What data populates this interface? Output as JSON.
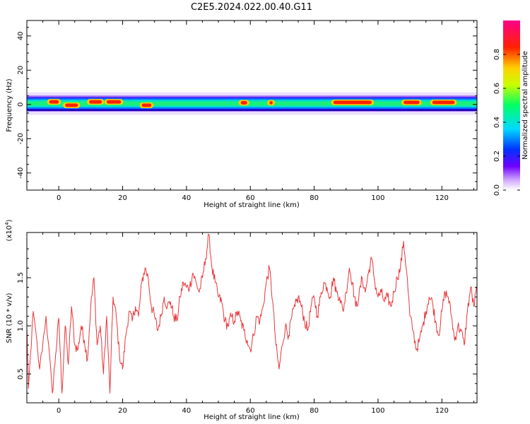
{
  "title": "C2E5.2024.022.00.40.G11",
  "colors": {
    "axis": "#000000",
    "snr_line": "#e8363a",
    "colormap": [
      "#ffffff",
      "#6e00ff",
      "#0033ff",
      "#00d9ff",
      "#00ff66",
      "#c8ff00",
      "#ffd000",
      "#ff2200",
      "#ff0088"
    ]
  },
  "chart_data": [
    {
      "type": "heatmap",
      "xlabel": "Height of straight line (km)",
      "ylabel": "Frequency (Hz)",
      "xlim": [
        -10,
        131
      ],
      "ylim": [
        -50,
        49
      ],
      "xticks": [
        "0",
        "20",
        "40",
        "60",
        "80",
        "100",
        "120"
      ],
      "xtick_values": [
        0,
        20,
        40,
        60,
        80,
        100,
        120
      ],
      "yticks": [
        "-40",
        "-20",
        "0",
        "20",
        "40"
      ],
      "ytick_values": [
        -40,
        -20,
        0,
        20,
        40
      ],
      "band": {
        "center_hz": 0.5,
        "half_width_hz": 3,
        "hot_segments": [
          {
            "x0": -3,
            "x1": 0,
            "f": 1.5
          },
          {
            "x0": 2,
            "x1": 6,
            "f": -0.5
          },
          {
            "x0": 9.5,
            "x1": 13.5,
            "f": 1.5
          },
          {
            "x0": 15,
            "x1": 19.5,
            "f": 1.5
          },
          {
            "x0": 26,
            "x1": 29,
            "f": -0.5
          },
          {
            "x0": 57,
            "x1": 59,
            "f": 1.0
          },
          {
            "x0": 66,
            "x1": 67,
            "f": 1.0
          },
          {
            "x0": 86,
            "x1": 98,
            "f": 1.2
          },
          {
            "x0": 108,
            "x1": 113,
            "f": 1.2
          },
          {
            "x0": 117,
            "x1": 124,
            "f": 1.2
          }
        ]
      },
      "colorbar": {
        "label": "Normalized spectral amplitude",
        "range": [
          0,
          1
        ],
        "ticks": [
          "0.0",
          "0.2",
          "0.4",
          "0.6",
          "0.8"
        ],
        "tick_values": [
          0,
          0.2,
          0.4,
          0.6,
          0.8
        ]
      }
    },
    {
      "type": "line",
      "xlabel": "Height of straight line (km)",
      "ylabel": "SNR (10 * v/v)",
      "scale_label": "(x10",
      "scale_exponent": "4",
      "scale_suffix": ")",
      "xlim": [
        -10,
        131
      ],
      "ylim": [
        0.2,
        1.97
      ],
      "xticks": [
        "0",
        "20",
        "40",
        "60",
        "80",
        "100",
        "120"
      ],
      "xtick_values": [
        0,
        20,
        40,
        60,
        80,
        100,
        120
      ],
      "yticks": [
        "0.5",
        "1.0",
        "1.5"
      ],
      "ytick_values": [
        0.5,
        1.0,
        1.5
      ],
      "keypoints": [
        [
          -10,
          0.98
        ],
        [
          -9.5,
          0.35
        ],
        [
          -8,
          1.15
        ],
        [
          -6,
          0.55
        ],
        [
          -4,
          1.1
        ],
        [
          -2,
          0.3
        ],
        [
          -1,
          0.7
        ],
        [
          0,
          1.08
        ],
        [
          1,
          0.3
        ],
        [
          2,
          1.0
        ],
        [
          3,
          0.6
        ],
        [
          4,
          1.2
        ],
        [
          5,
          0.8
        ],
        [
          6,
          0.75
        ],
        [
          7,
          1.0
        ],
        [
          8,
          0.85
        ],
        [
          9,
          0.65
        ],
        [
          10,
          1.2
        ],
        [
          11,
          1.5
        ],
        [
          12,
          0.8
        ],
        [
          13,
          1.0
        ],
        [
          14,
          0.5
        ],
        [
          15,
          1.1
        ],
        [
          16,
          0.3
        ],
        [
          17,
          1.3
        ],
        [
          18,
          1.1
        ],
        [
          19,
          0.7
        ],
        [
          20,
          0.55
        ],
        [
          21,
          0.9
        ],
        [
          22,
          1.15
        ],
        [
          23,
          1.05
        ],
        [
          24,
          1.2
        ],
        [
          25,
          1.1
        ],
        [
          26,
          1.45
        ],
        [
          27,
          1.6
        ],
        [
          28,
          1.5
        ],
        [
          29,
          1.2
        ],
        [
          30,
          1.1
        ],
        [
          31,
          0.95
        ],
        [
          32,
          1.1
        ],
        [
          33,
          1.3
        ],
        [
          34,
          1.2
        ],
        [
          35,
          1.25
        ],
        [
          36,
          1.1
        ],
        [
          37,
          1.05
        ],
        [
          38,
          1.3
        ],
        [
          39,
          1.45
        ],
        [
          40,
          1.4
        ],
        [
          41,
          1.4
        ],
        [
          42,
          1.55
        ],
        [
          43,
          1.45
        ],
        [
          44,
          1.35
        ],
        [
          45,
          1.5
        ],
        [
          46,
          1.7
        ],
        [
          47,
          1.95
        ],
        [
          48,
          1.6
        ],
        [
          49,
          1.45
        ],
        [
          50,
          1.3
        ],
        [
          51,
          1.25
        ],
        [
          52,
          1.05
        ],
        [
          53,
          1.0
        ],
        [
          54,
          1.1
        ],
        [
          55,
          1.05
        ],
        [
          56,
          1.15
        ],
        [
          57,
          1.05
        ],
        [
          58,
          0.95
        ],
        [
          59,
          0.85
        ],
        [
          60,
          0.75
        ],
        [
          61,
          0.9
        ],
        [
          62,
          1.1
        ],
        [
          63,
          1.05
        ],
        [
          64,
          1.2
        ],
        [
          65,
          1.45
        ],
        [
          66,
          1.6
        ],
        [
          67,
          1.25
        ],
        [
          68,
          0.8
        ],
        [
          69,
          0.55
        ],
        [
          70,
          0.8
        ],
        [
          71,
          1.0
        ],
        [
          72,
          0.9
        ],
        [
          73,
          1.1
        ],
        [
          74,
          1.2
        ],
        [
          75,
          1.3
        ],
        [
          76,
          1.2
        ],
        [
          77,
          1.05
        ],
        [
          78,
          0.95
        ],
        [
          79,
          1.2
        ],
        [
          80,
          1.3
        ],
        [
          81,
          1.1
        ],
        [
          82,
          1.3
        ],
        [
          83,
          1.45
        ],
        [
          84,
          1.4
        ],
        [
          85,
          1.3
        ],
        [
          86,
          1.5
        ],
        [
          87,
          1.35
        ],
        [
          88,
          1.3
        ],
        [
          89,
          1.15
        ],
        [
          90,
          1.35
        ],
        [
          91,
          1.6
        ],
        [
          92,
          1.45
        ],
        [
          93,
          1.2
        ],
        [
          94,
          1.3
        ],
        [
          95,
          1.5
        ],
        [
          96,
          1.35
        ],
        [
          97,
          1.55
        ],
        [
          98,
          1.7
        ],
        [
          99,
          1.45
        ],
        [
          100,
          1.3
        ],
        [
          101,
          1.35
        ],
        [
          102,
          1.25
        ],
        [
          103,
          1.3
        ],
        [
          104,
          1.2
        ],
        [
          105,
          1.35
        ],
        [
          106,
          1.5
        ],
        [
          107,
          1.6
        ],
        [
          108,
          1.88
        ],
        [
          109,
          1.55
        ],
        [
          110,
          1.1
        ],
        [
          111,
          0.95
        ],
        [
          112,
          0.75
        ],
        [
          113,
          0.85
        ],
        [
          114,
          1.0
        ],
        [
          115,
          1.15
        ],
        [
          116,
          1.3
        ],
        [
          117,
          1.25
        ],
        [
          118,
          1.05
        ],
        [
          119,
          0.9
        ],
        [
          120,
          1.15
        ],
        [
          121,
          1.35
        ],
        [
          122,
          1.3
        ],
        [
          123,
          1.1
        ],
        [
          124,
          0.85
        ],
        [
          125,
          1.0
        ],
        [
          126,
          0.95
        ],
        [
          127,
          0.8
        ],
        [
          128,
          1.15
        ],
        [
          129,
          1.4
        ],
        [
          130,
          1.2
        ],
        [
          131,
          1.4
        ]
      ]
    }
  ]
}
